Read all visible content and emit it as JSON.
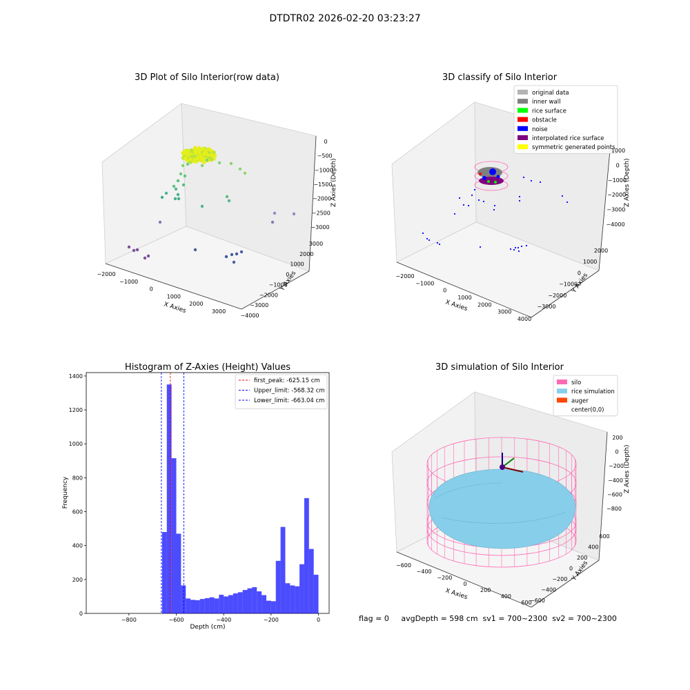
{
  "figure": {
    "suptitle": "DTDTR02 2026-02-20 03:23:27",
    "status_line": "flag = 0     avgDepth = 598 cm  sv1 = 700~2300  sv2 = 700~2300"
  },
  "panels": {
    "raw": {
      "title": "3D Plot of Silo Interior(row data)",
      "x_ticks": [
        "−2000",
        "−1000",
        "0",
        "1000",
        "2000",
        "3000"
      ],
      "y_ticks": [
        "3000",
        "2000",
        "1000",
        "0",
        "−1000",
        "−2000",
        "−3000",
        "−4000"
      ],
      "z_ticks": [
        "0",
        "−500",
        "−1000",
        "−1500",
        "−2000",
        "−2500",
        "−3000"
      ],
      "xlabel": "X Axies",
      "ylabel": "Y Axies",
      "zlabel": "Z Axies (Depth)"
    },
    "classify": {
      "title": "3D classify of Silo Interior",
      "x_ticks": [
        "−2000",
        "−1000",
        "0",
        "1000",
        "2000",
        "3000",
        "4000"
      ],
      "y_ticks": [
        "2000",
        "1000",
        "0",
        "−1000",
        "−2000",
        "−3000"
      ],
      "z_ticks": [
        "1000",
        "0",
        "−1000",
        "−2000",
        "−3000",
        "−4000"
      ],
      "xlabel": "X Axies",
      "ylabel": "Y Axies",
      "zlabel": "Z Axies (Depth)",
      "legend": [
        {
          "label": "original data",
          "color": "#b3b3b3"
        },
        {
          "label": "inner wall",
          "color": "#808080"
        },
        {
          "label": "rice surface",
          "color": "#00ff00"
        },
        {
          "label": "obstacle",
          "color": "#ff0000"
        },
        {
          "label": "noise",
          "color": "#0000ff"
        },
        {
          "label": "interpolated rice surface",
          "color": "#800080"
        },
        {
          "label": "symmetric generated points",
          "color": "#ffff00"
        }
      ]
    },
    "sim": {
      "title": "3D simulation of Silo Interior",
      "x_ticks": [
        "−600",
        "−400",
        "−200",
        "0",
        "200",
        "400",
        "600"
      ],
      "y_ticks": [
        "600",
        "400",
        "200",
        "0",
        "−200",
        "−400",
        "−600"
      ],
      "z_ticks": [
        "200",
        "0",
        "−200",
        "−400",
        "−600",
        "−800"
      ],
      "xlabel": "X Axies",
      "ylabel": "Y Axies",
      "zlabel": "Z Axies (Depth)",
      "legend": [
        {
          "label": "silo",
          "color": "#ff69b4"
        },
        {
          "label": "rice simulation",
          "color": "#87ceeb"
        },
        {
          "label": "auger",
          "color": "#ff4500"
        },
        {
          "label": "center(0,0)",
          "color": "#ffffff"
        }
      ]
    }
  },
  "chart_data": [
    {
      "type": "histogram",
      "title": "Histogram of Z-Axies (Height) Values",
      "xlabel": "Depth (cm)",
      "ylabel": "Frequency",
      "xlim": [
        -980,
        45
      ],
      "ylim": [
        0,
        1420
      ],
      "x_ticks": [
        -800,
        -600,
        -400,
        -200,
        0
      ],
      "y_ticks": [
        0,
        200,
        400,
        600,
        800,
        1000,
        1200,
        1400
      ],
      "bar_color": "#0000ff",
      "bin_width": 20,
      "bins": [
        {
          "x": -640,
          "count": 480
        },
        {
          "x": -620,
          "count": 1350
        },
        {
          "x": -600,
          "count": 915
        },
        {
          "x": -580,
          "count": 470
        },
        {
          "x": -560,
          "count": 165
        },
        {
          "x": -540,
          "count": 88
        },
        {
          "x": -520,
          "count": 80
        },
        {
          "x": -500,
          "count": 78
        },
        {
          "x": -480,
          "count": 85
        },
        {
          "x": -460,
          "count": 90
        },
        {
          "x": -440,
          "count": 95
        },
        {
          "x": -420,
          "count": 88
        },
        {
          "x": -400,
          "count": 110
        },
        {
          "x": -380,
          "count": 100
        },
        {
          "x": -360,
          "count": 108
        },
        {
          "x": -340,
          "count": 118
        },
        {
          "x": -320,
          "count": 125
        },
        {
          "x": -300,
          "count": 138
        },
        {
          "x": -280,
          "count": 148
        },
        {
          "x": -260,
          "count": 155
        },
        {
          "x": -240,
          "count": 130
        },
        {
          "x": -220,
          "count": 108
        },
        {
          "x": -200,
          "count": 75
        },
        {
          "x": -180,
          "count": 72
        },
        {
          "x": -160,
          "count": 310
        },
        {
          "x": -140,
          "count": 510
        },
        {
          "x": -120,
          "count": 178
        },
        {
          "x": -100,
          "count": 165
        },
        {
          "x": -80,
          "count": 160
        },
        {
          "x": -60,
          "count": 290
        },
        {
          "x": -40,
          "count": 680
        },
        {
          "x": -20,
          "count": 380
        },
        {
          "x": 0,
          "count": 228
        }
      ],
      "vlines": [
        {
          "label": "first_peak: -625.15 cm",
          "x": -625.15,
          "color": "#ff0000"
        },
        {
          "label": "Upper_limit: -568.32 cm",
          "x": -568.32,
          "color": "#0000ff"
        },
        {
          "label": "Lower_limit: -663.04 cm",
          "x": -663.04,
          "color": "#0000ff"
        }
      ],
      "legend_position": "upper right"
    }
  ]
}
